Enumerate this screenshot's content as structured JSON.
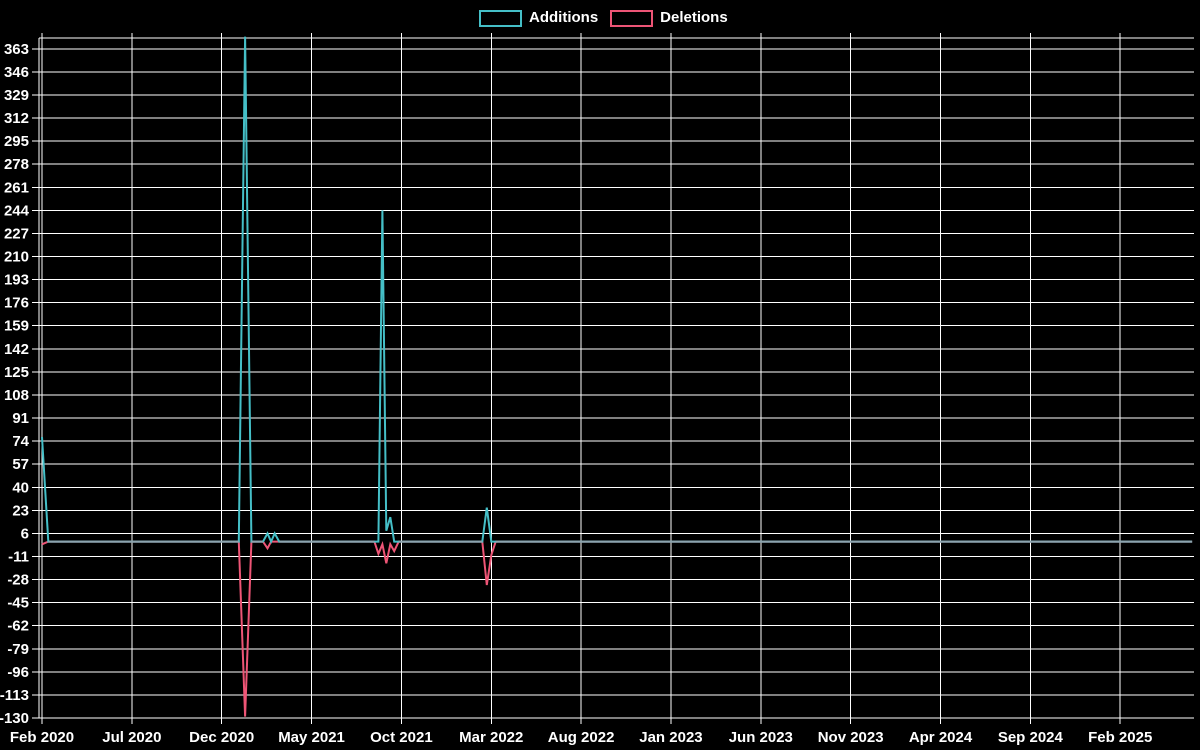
{
  "chart_data": {
    "type": "line",
    "title": "",
    "background_color": "#000000",
    "text_color": "#ffffff",
    "grid_color": "#ffffff",
    "baseline_overlap_color": "#8ca4ae",
    "legend": [
      {
        "label": "Additions",
        "color": "#45bfc7"
      },
      {
        "label": "Deletions",
        "color": "#ee5576"
      }
    ],
    "legend_position": "top-center",
    "grid": "on",
    "x_ticks": [
      "Feb 2020",
      "Jul 2020",
      "Dec 2020",
      "May 2021",
      "Oct 2021",
      "Mar 2022",
      "Aug 2022",
      "Jan 2023",
      "Jun 2023",
      "Nov 2023",
      "Apr 2024",
      "Sep 2024",
      "Feb 2025"
    ],
    "x_tick_interval_months": 5,
    "y_ticks": [
      363,
      346,
      329,
      312,
      295,
      278,
      261,
      244,
      227,
      210,
      193,
      176,
      159,
      142,
      125,
      108,
      91,
      74,
      57,
      40,
      23,
      6,
      -11,
      -28,
      -45,
      -62,
      -79,
      -96,
      -113,
      -130
    ],
    "y_tick_step": 17,
    "ylim": [
      -130,
      371
    ],
    "xlim_months_from_feb_2020": [
      0,
      64
    ],
    "points": [
      {
        "t": 0.0,
        "approx_date": "2020-02",
        "additions": 77,
        "deletions": -2
      },
      {
        "t": 0.35,
        "approx_date": "2020-02",
        "additions": 0,
        "deletions": 0
      },
      {
        "t": 10.95,
        "approx_date": "2021-01",
        "additions": 0,
        "deletions": 0
      },
      {
        "t": 11.3,
        "approx_date": "2021-01",
        "additions": 372,
        "deletions": -129
      },
      {
        "t": 11.65,
        "approx_date": "2021-01",
        "additions": 0,
        "deletions": 0
      },
      {
        "t": 12.3,
        "approx_date": "2021-02",
        "additions": 0,
        "deletions": 0
      },
      {
        "t": 12.55,
        "approx_date": "2021-02",
        "additions": 6,
        "deletions": -5
      },
      {
        "t": 12.75,
        "approx_date": "2021-02",
        "additions": 0,
        "deletions": 0
      },
      {
        "t": 12.95,
        "approx_date": "2021-03",
        "additions": 6,
        "deletions": 0
      },
      {
        "t": 13.2,
        "approx_date": "2021-03",
        "additions": 0,
        "deletions": 0
      },
      {
        "t": 18.5,
        "approx_date": "2021-08",
        "additions": 0,
        "deletions": 0
      },
      {
        "t": 18.72,
        "approx_date": "2021-08",
        "additions": 0,
        "deletions": -9
      },
      {
        "t": 18.94,
        "approx_date": "2021-09",
        "additions": 244,
        "deletions": -2
      },
      {
        "t": 19.16,
        "approx_date": "2021-09",
        "additions": 8,
        "deletions": -16
      },
      {
        "t": 19.38,
        "approx_date": "2021-09",
        "additions": 18,
        "deletions": -2
      },
      {
        "t": 19.6,
        "approx_date": "2021-09",
        "additions": 0,
        "deletions": -7
      },
      {
        "t": 19.85,
        "approx_date": "2021-10",
        "additions": 0,
        "deletions": 0
      },
      {
        "t": 24.5,
        "approx_date": "2022-02",
        "additions": 0,
        "deletions": 0
      },
      {
        "t": 24.75,
        "approx_date": "2022-02",
        "additions": 25,
        "deletions": -32
      },
      {
        "t": 25.0,
        "approx_date": "2022-03",
        "additions": 0,
        "deletions": -10
      },
      {
        "t": 25.25,
        "approx_date": "2022-03",
        "additions": 0,
        "deletions": 0
      },
      {
        "t": 64.0,
        "approx_date": "2025-05",
        "additions": 0,
        "deletions": 0
      }
    ]
  }
}
